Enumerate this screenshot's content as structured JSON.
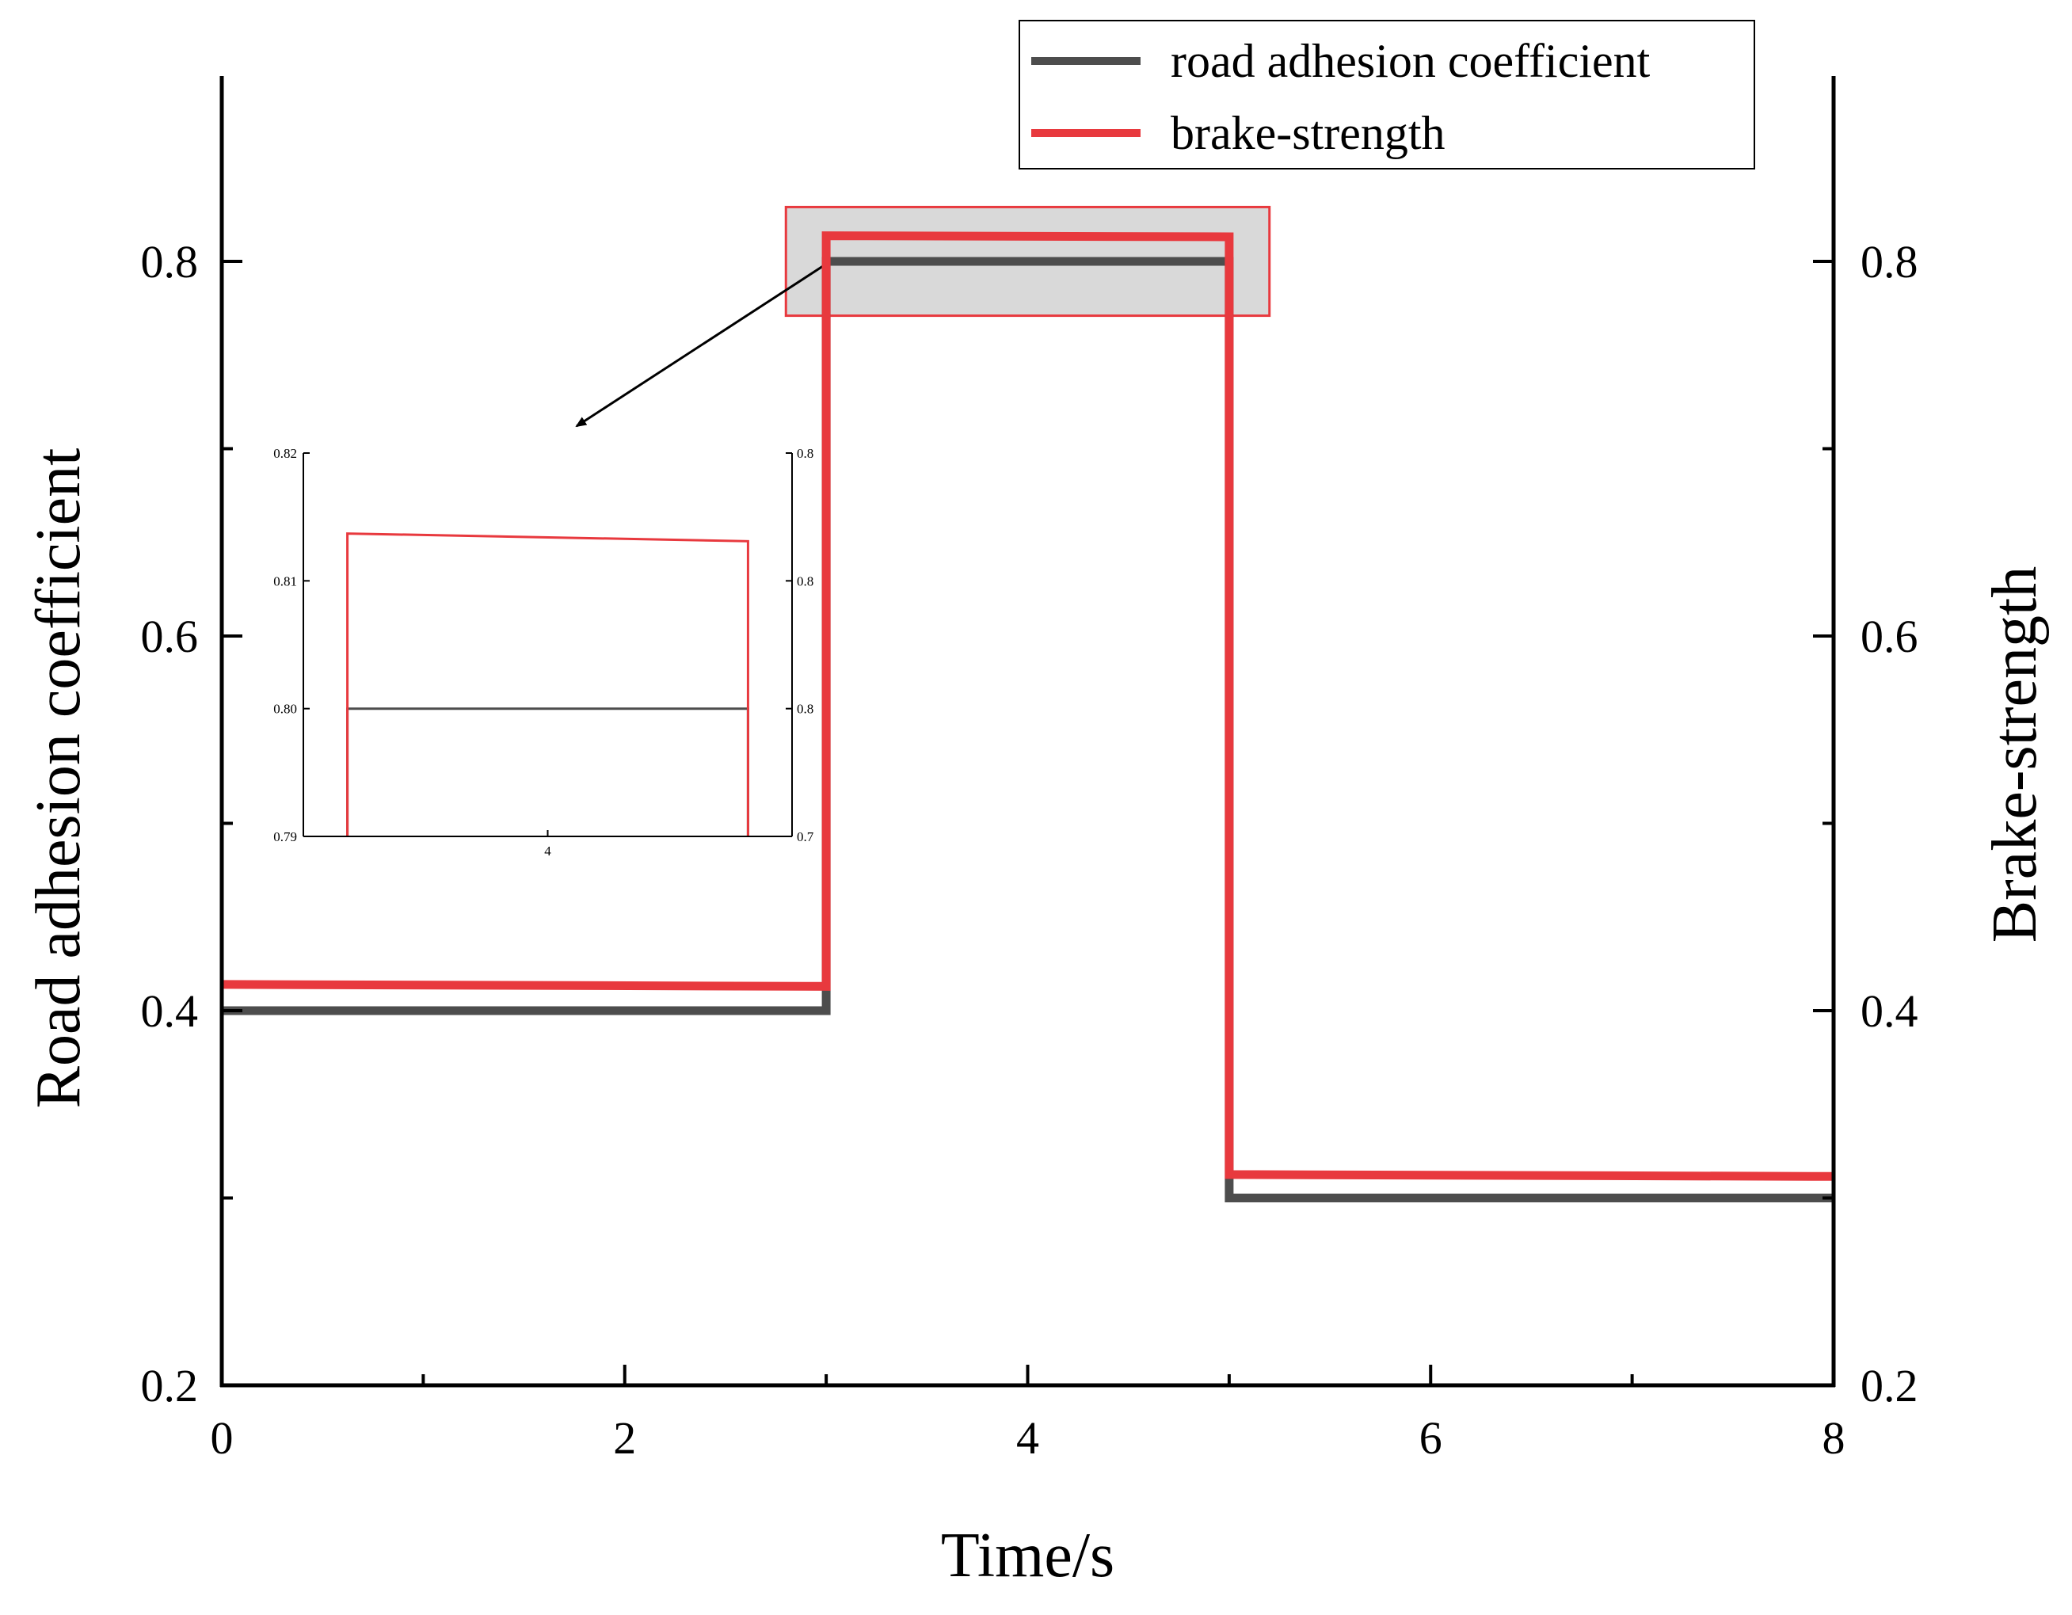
{
  "chart_data": {
    "type": "line",
    "title": "",
    "xlabel": "Time/s",
    "ylabel_left": "Road adhesion coefficient",
    "ylabel_right": "Brake-strength",
    "xlim": [
      0,
      8
    ],
    "ylim": [
      0.2,
      0.8
    ],
    "ylim_right": [
      0.2,
      0.8
    ],
    "x_ticks": [
      "0",
      "2",
      "4",
      "6",
      "8"
    ],
    "y_ticks_left": [
      "0.2",
      "0.4",
      "0.6",
      "0.8"
    ],
    "y_ticks_right": [
      "0.2",
      "0.4",
      "0.6",
      "0.8"
    ],
    "grid": false,
    "legend_position": "top-right",
    "series": [
      {
        "name": "road adhesion coefficient",
        "color": "#4d4d4d",
        "axis": "left",
        "x": [
          0,
          3,
          3,
          5,
          5,
          8
        ],
        "y": [
          0.4,
          0.4,
          0.8,
          0.8,
          0.3,
          0.3
        ]
      },
      {
        "name": "brake-strength",
        "color": "#e8393e",
        "axis": "right",
        "x": [
          0,
          3,
          3,
          5,
          5,
          8
        ],
        "y": [
          0.414,
          0.413,
          0.8137,
          0.8131,
          0.3125,
          0.3115
        ]
      }
    ],
    "zoom_box": {
      "x_range": [
        2.8,
        5.2
      ],
      "y_range": [
        0.771,
        0.829
      ]
    },
    "inset": {
      "xlim": [
        2.78,
        5.22
      ],
      "ylim": [
        0.79,
        0.82
      ],
      "x_ticks": [
        "4"
      ],
      "y_ticks_left": [
        "0.79",
        "0.80",
        "0.81",
        "0.82"
      ],
      "y_ticks_right": [
        "0.7",
        "0.8",
        "0.8",
        "0.8"
      ]
    }
  }
}
